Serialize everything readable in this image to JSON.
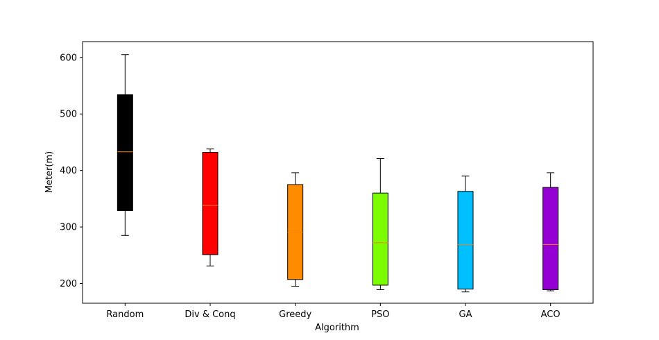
{
  "chart_data": {
    "type": "box",
    "title": "",
    "xlabel": "Algorithm",
    "ylabel": "Meter(m)",
    "ylim": [
      165,
      628
    ],
    "yticks": [
      200,
      300,
      400,
      500,
      600
    ],
    "grid": false,
    "categories": [
      "Random",
      "Div & Conq",
      "Greedy",
      "PSO",
      "GA",
      "ACO"
    ],
    "boxes": [
      {
        "category": "Random",
        "min": 285,
        "q1": 329,
        "median": 433,
        "q3": 534,
        "max": 605,
        "color": "#000000"
      },
      {
        "category": "Div & Conq",
        "min": 231,
        "q1": 251,
        "median": 338,
        "q3": 432,
        "max": 438,
        "color": "#ff0000"
      },
      {
        "category": "Greedy",
        "min": 195,
        "q1": 207,
        "median": 290,
        "q3": 375,
        "max": 396,
        "color": "#ff8c00"
      },
      {
        "category": "PSO",
        "min": 189,
        "q1": 197,
        "median": 272,
        "q3": 360,
        "max": 421,
        "color": "#7cfc00"
      },
      {
        "category": "GA",
        "min": 185,
        "q1": 190,
        "median": 269,
        "q3": 363,
        "max": 390,
        "color": "#00bfff"
      },
      {
        "category": "ACO",
        "min": 187,
        "q1": 189,
        "median": 269,
        "q3": 370,
        "max": 396,
        "color": "#9400d3"
      }
    ],
    "median_color": "#ff7f0e"
  }
}
